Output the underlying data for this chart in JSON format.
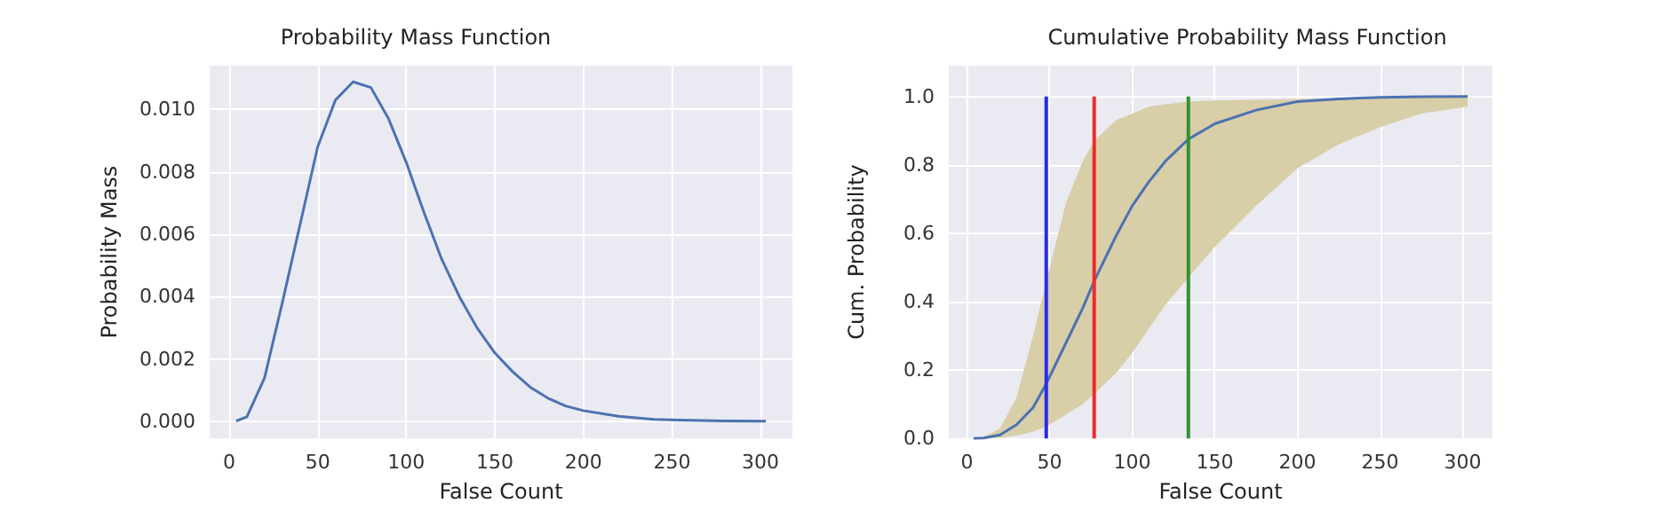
{
  "chart_data": [
    {
      "type": "line",
      "title": "Probability Mass Function",
      "xlabel": "False Count",
      "ylabel": "Probability Mass",
      "x": [
        4,
        10,
        20,
        30,
        40,
        50,
        60,
        70,
        80,
        90,
        100,
        110,
        120,
        130,
        140,
        150,
        160,
        170,
        180,
        190,
        200,
        220,
        240,
        260,
        280,
        303
      ],
      "series": [
        {
          "color": "#4c72b0",
          "values": [
            2e-05,
            0.00015,
            0.0014,
            0.0038,
            0.0063,
            0.0088,
            0.0103,
            0.01088,
            0.0107,
            0.0097,
            0.0083,
            0.0067,
            0.0052,
            0.004,
            0.003,
            0.0022,
            0.0016,
            0.0011,
            0.00075,
            0.0005,
            0.00035,
            0.00017,
            7e-05,
            4e-05,
            2e-05,
            1e-05
          ]
        }
      ],
      "xlim": [
        -11,
        318
      ],
      "ylim": [
        -0.00054,
        0.0114
      ],
      "xticks": [
        0,
        50,
        100,
        150,
        200,
        250,
        300
      ],
      "yticks": [
        {
          "value": 0,
          "label": "0.000"
        },
        {
          "value": 0.002,
          "label": "0.002"
        },
        {
          "value": 0.004,
          "label": "0.004"
        },
        {
          "value": 0.006,
          "label": "0.006"
        },
        {
          "value": 0.008,
          "label": "0.008"
        },
        {
          "value": 0.01,
          "label": "0.010"
        }
      ],
      "grid": true,
      "marker": "none"
    },
    {
      "type": "line",
      "title": "Cumulative Probability Mass Function",
      "xlabel": "False Count",
      "ylabel": "Cum. Probability",
      "x": [
        4,
        10,
        20,
        30,
        40,
        48,
        60,
        70,
        77,
        90,
        100,
        110,
        120,
        134,
        150,
        175,
        200,
        225,
        250,
        275,
        303
      ],
      "series": [
        {
          "color": "#4c72b0",
          "values": [
            0,
            0.001,
            0.01,
            0.04,
            0.09,
            0.16,
            0.28,
            0.38,
            0.46,
            0.59,
            0.68,
            0.75,
            0.81,
            0.875,
            0.92,
            0.96,
            0.985,
            0.993,
            0.997,
            0.999,
            1.0
          ],
          "upper": [
            0,
            0.003,
            0.03,
            0.12,
            0.3,
            0.46,
            0.69,
            0.81,
            0.87,
            0.93,
            0.95,
            0.97,
            0.977,
            0.985,
            0.988,
            0.99,
            0.992,
            0.994,
            0.996,
            0.998,
            1.0
          ],
          "lower": [
            0,
            0,
            0.002,
            0.008,
            0.02,
            0.035,
            0.07,
            0.1,
            0.13,
            0.19,
            0.25,
            0.32,
            0.39,
            0.47,
            0.56,
            0.68,
            0.79,
            0.86,
            0.91,
            0.95,
            0.97
          ]
        },
        {
          "color": "#2a2aee",
          "x": [
            48,
            48
          ],
          "values": [
            0,
            1
          ]
        },
        {
          "color": "#ee2a2a",
          "x": [
            77,
            77
          ],
          "values": [
            0,
            1
          ]
        },
        {
          "color": "#2e932e",
          "x": [
            134,
            134
          ],
          "values": [
            0,
            1
          ]
        }
      ],
      "xlim": [
        -11,
        318
      ],
      "ylim": [
        0,
        1.09
      ],
      "xticks": [
        0,
        50,
        100,
        150,
        200,
        250,
        300
      ],
      "yticks": [
        {
          "value": 0,
          "label": "0.0"
        },
        {
          "value": 0.2,
          "label": "0.2"
        },
        {
          "value": 0.4,
          "label": "0.4"
        },
        {
          "value": 0.6,
          "label": "0.6"
        },
        {
          "value": 0.8,
          "label": "0.8"
        },
        {
          "value": 1,
          "label": "1.0"
        }
      ],
      "grid": true,
      "marker": "none"
    }
  ]
}
